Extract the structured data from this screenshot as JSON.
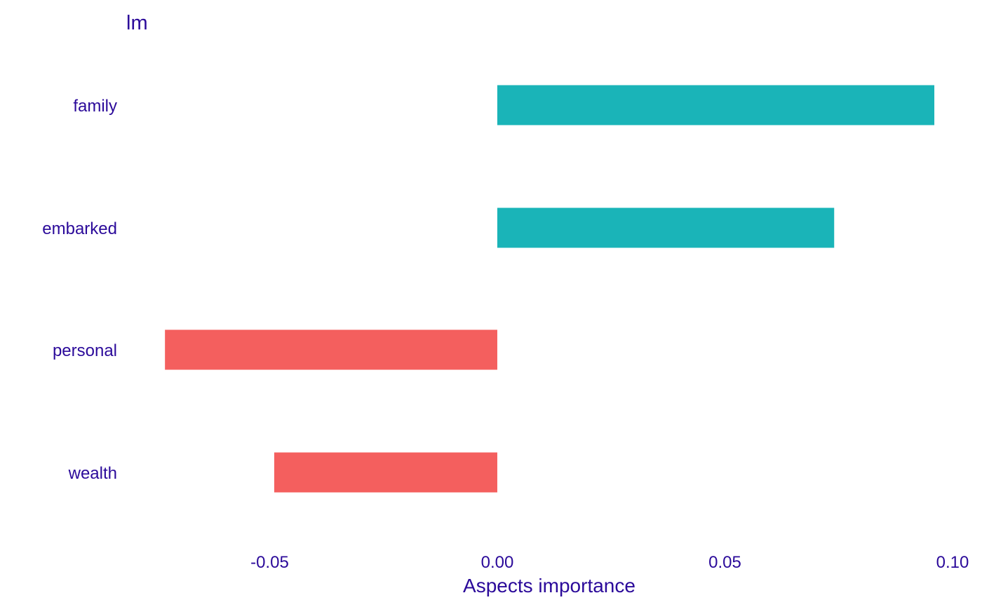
{
  "chart_data": {
    "type": "bar",
    "orientation": "horizontal",
    "title": "lm",
    "xlabel": "Aspects importance",
    "ylabel": "",
    "categories": [
      "family",
      "embarked",
      "personal",
      "wealth"
    ],
    "values": [
      0.096,
      0.074,
      -0.073,
      -0.049
    ],
    "xlim": [
      -0.0815,
      0.1
    ],
    "xticks": [
      -0.05,
      0.0,
      0.05,
      0.1
    ],
    "xtick_labels": [
      "-0.05",
      "0.00",
      "0.05",
      "0.10"
    ],
    "grid": false,
    "legend": "none",
    "colors": {
      "positive": "#1AB4B8",
      "negative": "#F45F5E",
      "text": "#2B0A9A"
    }
  }
}
